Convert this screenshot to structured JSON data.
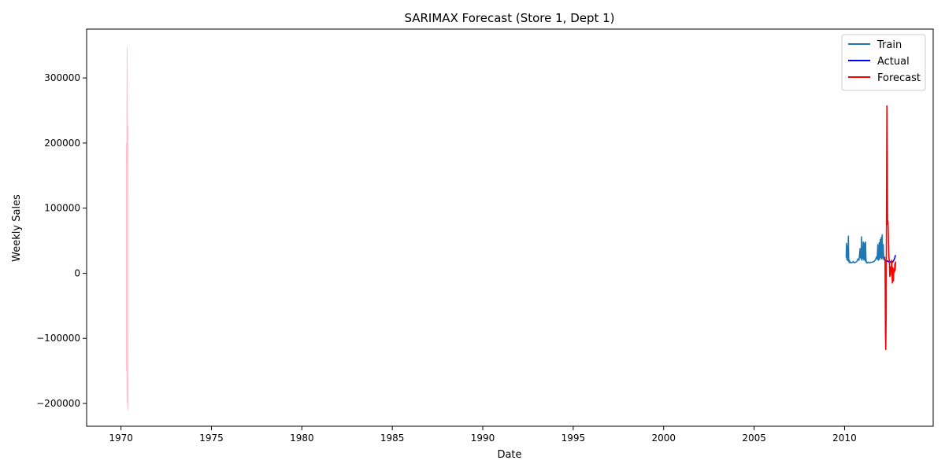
{
  "chart_data": {
    "type": "line",
    "title": "SARIMAX Forecast (Store 1, Dept 1)",
    "xlabel": "Date",
    "ylabel": "Weekly Sales",
    "xlim": [
      1968.1,
      2014.9
    ],
    "ylim": [
      -235000,
      375000
    ],
    "xticks": [
      {
        "value": 1970,
        "label": "1970"
      },
      {
        "value": 1975,
        "label": "1975"
      },
      {
        "value": 1980,
        "label": "1980"
      },
      {
        "value": 1985,
        "label": "1985"
      },
      {
        "value": 1990,
        "label": "1990"
      },
      {
        "value": 1995,
        "label": "1995"
      },
      {
        "value": 2000,
        "label": "2000"
      },
      {
        "value": 2005,
        "label": "2005"
      },
      {
        "value": 2010,
        "label": "2010"
      }
    ],
    "yticks": [
      {
        "value": 300000,
        "label": "300000"
      },
      {
        "value": 200000,
        "label": "200000"
      },
      {
        "value": 100000,
        "label": "100000"
      },
      {
        "value": 0,
        "label": "0"
      },
      {
        "value": -100000,
        "label": "−100000"
      },
      {
        "value": -200000,
        "label": "−200000"
      }
    ],
    "legend_position": "top-right",
    "grid": false,
    "series": [
      {
        "name": "Train",
        "color": "#1f77b4",
        "x": [
          2010.09,
          2010.11,
          2010.13,
          2010.15,
          2010.17,
          2010.19,
          2010.21,
          2010.23,
          2010.25,
          2010.27,
          2010.29,
          2010.33,
          2010.4,
          2010.48,
          2010.55,
          2010.62,
          2010.68,
          2010.74,
          2010.8,
          2010.86,
          2010.88,
          2010.9,
          2010.92,
          2010.94,
          2010.96,
          2010.98,
          2011.0,
          2011.03,
          2011.06,
          2011.08,
          2011.1,
          2011.12,
          2011.14,
          2011.16,
          2011.18,
          2011.2,
          2011.22,
          2011.24,
          2011.26,
          2011.3,
          2011.38,
          2011.46,
          2011.54,
          2011.62,
          2011.7,
          2011.76,
          2011.8,
          2011.84,
          2011.86,
          2011.88,
          2011.9,
          2011.92,
          2011.94,
          2011.96,
          2011.98,
          2012.0,
          2012.03,
          2012.06,
          2012.08,
          2012.1,
          2012.12,
          2012.14,
          2012.16,
          2012.18,
          2012.2,
          2012.22
        ],
        "y": [
          24000,
          46000,
          21000,
          42000,
          23000,
          19000,
          57000,
          22000,
          17000,
          20000,
          16000,
          17000,
          16000,
          18000,
          16000,
          17000,
          18000,
          22000,
          20000,
          38000,
          24000,
          30000,
          22000,
          56000,
          20000,
          25000,
          23000,
          48000,
          21000,
          24000,
          46000,
          22000,
          19000,
          48000,
          23000,
          17000,
          16000,
          17000,
          16000,
          17000,
          16000,
          17000,
          17000,
          18000,
          20000,
          25000,
          22000,
          44000,
          20000,
          36000,
          24000,
          47000,
          21000,
          30000,
          52000,
          24000,
          55000,
          22000,
          59000,
          24000,
          34000,
          44000,
          21000,
          26000,
          22000,
          25000
        ]
      },
      {
        "name": "Actual",
        "color": "#0000ff",
        "x": [
          2012.22,
          2012.26,
          2012.3,
          2012.34,
          2012.38,
          2012.42,
          2012.46,
          2012.5,
          2012.54,
          2012.58,
          2012.62,
          2012.66,
          2012.7,
          2012.74,
          2012.78,
          2012.82
        ],
        "y": [
          21000,
          20000,
          19000,
          18000,
          19000,
          18000,
          17000,
          18000,
          17000,
          17000,
          18000,
          17000,
          19000,
          21000,
          24000,
          28000
        ]
      },
      {
        "name": "Forecast",
        "color": "#ff0000",
        "x": [
          2012.22,
          2012.24,
          2012.26,
          2012.28,
          2012.3,
          2012.32,
          2012.34,
          2012.36,
          2012.38,
          2012.4,
          2012.42,
          2012.44,
          2012.46,
          2012.48,
          2012.5,
          2012.52,
          2012.54,
          2012.56,
          2012.58,
          2012.6,
          2012.62,
          2012.64,
          2012.66,
          2012.68,
          2012.7,
          2012.72,
          2012.74,
          2012.76,
          2012.78,
          2012.8,
          2012.82
        ],
        "y": [
          25000,
          15000,
          -95000,
          -117000,
          -60000,
          90000,
          257000,
          180000,
          75000,
          80000,
          60000,
          30000,
          22000,
          18000,
          -5000,
          10000,
          -3000,
          5000,
          2000,
          20000,
          10000,
          -15000,
          5000,
          8000,
          -12000,
          3000,
          6000,
          2000,
          15000,
          5000,
          18000
        ]
      }
    ],
    "confidence_band": {
      "color": "#ffc0cb",
      "x": [
        1970.3,
        1970.31,
        1970.32,
        1970.33,
        1970.34,
        1970.35,
        1970.36,
        1970.37,
        1970.38
      ],
      "upper": [
        200000,
        120000,
        150000,
        280000,
        347000,
        300000,
        220000,
        170000,
        225000
      ],
      "lower": [
        -150000,
        -90000,
        -120000,
        -180000,
        -200000,
        -175000,
        -190000,
        -160000,
        -210000
      ]
    }
  }
}
